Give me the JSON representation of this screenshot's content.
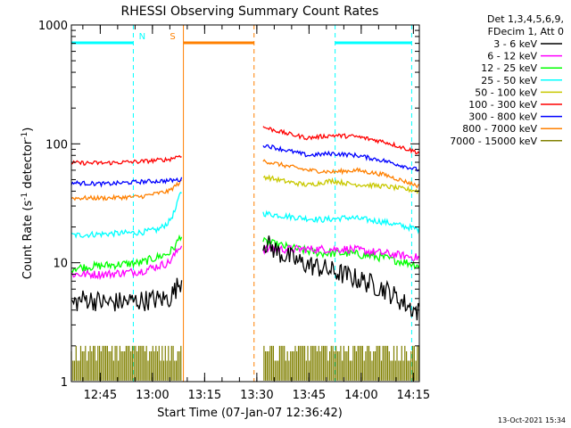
{
  "chart_data": {
    "type": "line",
    "title": "RHESSI Observing Summary Count Rates",
    "xlabel": "Start Time (07-Jan-07 12:36:42)",
    "ylabel_main": "Count Rate (s",
    "ylabel_sup1": "-1",
    "ylabel_mid": " detector",
    "ylabel_sup2": "-1",
    "ylabel_end": ")",
    "y_scale": "log",
    "ylim": [
      1,
      1000
    ],
    "y_ticks": [
      {
        "value": 1,
        "label": "1"
      },
      {
        "value": 10,
        "label": "10"
      },
      {
        "value": 100,
        "label": "100"
      },
      {
        "value": 1000,
        "label": "1000"
      }
    ],
    "xlim_minutes": [
      0,
      100
    ],
    "x_ticks": [
      {
        "minute": 8.3,
        "label": "12:45"
      },
      {
        "minute": 23.3,
        "label": "13:00"
      },
      {
        "minute": 38.3,
        "label": "13:15"
      },
      {
        "minute": 53.3,
        "label": "13:30"
      },
      {
        "minute": 68.3,
        "label": "13:45"
      },
      {
        "minute": 83.3,
        "label": "14:00"
      },
      {
        "minute": 98.3,
        "label": "14:15"
      }
    ],
    "legend_header": [
      "Det 1,3,4,5,6,9,",
      "FDecim 1, Att 0"
    ],
    "legend_position": "right",
    "timestamp": "13-Oct-2021 15:34",
    "flags": [
      {
        "label": "N",
        "color": "#00ffff",
        "bars": [
          [
            0,
            17.8
          ],
          [
            75.8,
            97.8
          ]
        ],
        "lines": [
          17.8,
          75.8,
          97.8
        ]
      },
      {
        "label": "S",
        "color": "#ff8000",
        "bars": [
          [
            32.2,
            52.5
          ]
        ],
        "lines": [
          32.2,
          52.5
        ]
      }
    ],
    "gaps_minutes": [
      [
        31.8,
        55.0
      ]
    ],
    "series": [
      {
        "name": "3 - 6 keV",
        "color": "#000000",
        "noise": 0.09,
        "points": [
          [
            0,
            4.5
          ],
          [
            4,
            5
          ],
          [
            10,
            4.6
          ],
          [
            20,
            4.8
          ],
          [
            28,
            5
          ],
          [
            30,
            6
          ],
          [
            31.4,
            7
          ],
          [
            55.2,
            15
          ],
          [
            60,
            12
          ],
          [
            66,
            10
          ],
          [
            72,
            9
          ],
          [
            78,
            8
          ],
          [
            84,
            7
          ],
          [
            90,
            6
          ],
          [
            96,
            4.5
          ],
          [
            100,
            3.8
          ]
        ]
      },
      {
        "name": "6 - 12 keV",
        "color": "#ff00ff",
        "noise": 0.035,
        "points": [
          [
            0,
            8
          ],
          [
            10,
            8
          ],
          [
            20,
            8.5
          ],
          [
            28,
            10
          ],
          [
            30,
            12
          ],
          [
            31.4,
            14
          ],
          [
            55.2,
            13
          ],
          [
            70,
            13
          ],
          [
            80,
            13
          ],
          [
            90,
            12
          ],
          [
            100,
            11
          ]
        ]
      },
      {
        "name": "12 - 25 keV",
        "color": "#00ff00",
        "noise": 0.035,
        "points": [
          [
            0,
            9
          ],
          [
            10,
            9.5
          ],
          [
            20,
            10
          ],
          [
            28,
            12
          ],
          [
            30,
            14
          ],
          [
            31.4,
            17
          ],
          [
            55.2,
            15
          ],
          [
            65,
            13
          ],
          [
            72,
            12
          ],
          [
            80,
            12
          ],
          [
            90,
            11
          ],
          [
            100,
            9.5
          ]
        ]
      },
      {
        "name": "25 - 50 keV",
        "color": "#00ffff",
        "noise": 0.025,
        "points": [
          [
            0,
            17
          ],
          [
            10,
            17.5
          ],
          [
            20,
            18
          ],
          [
            25,
            19
          ],
          [
            28,
            22
          ],
          [
            30,
            28
          ],
          [
            31.4,
            40
          ],
          [
            55.2,
            26
          ],
          [
            65,
            24
          ],
          [
            72,
            23
          ],
          [
            80,
            24
          ],
          [
            90,
            22
          ],
          [
            100,
            19
          ]
        ]
      },
      {
        "name": "50 - 100 keV",
        "color": "#c8c800",
        "noise": 0.02,
        "points": [
          [
            55.2,
            53
          ],
          [
            62,
            48
          ],
          [
            68,
            45
          ],
          [
            75,
            49
          ],
          [
            80,
            46
          ],
          [
            90,
            44
          ],
          [
            100,
            40
          ]
        ]
      },
      {
        "name": "100 - 300 keV",
        "color": "#ff0000",
        "noise": 0.018,
        "points": [
          [
            0,
            69
          ],
          [
            10,
            69
          ],
          [
            20,
            71
          ],
          [
            28,
            74
          ],
          [
            31.4,
            80
          ],
          [
            55.2,
            138
          ],
          [
            62,
            122
          ],
          [
            68,
            112
          ],
          [
            75,
            118
          ],
          [
            82,
            115
          ],
          [
            90,
            104
          ],
          [
            100,
            84
          ]
        ]
      },
      {
        "name": "300 - 800 keV",
        "color": "#0000ff",
        "noise": 0.018,
        "points": [
          [
            0,
            47
          ],
          [
            10,
            46
          ],
          [
            20,
            48
          ],
          [
            28,
            49
          ],
          [
            31.4,
            50
          ],
          [
            55.2,
            98
          ],
          [
            62,
            88
          ],
          [
            68,
            80
          ],
          [
            75,
            83
          ],
          [
            82,
            80
          ],
          [
            90,
            72
          ],
          [
            100,
            60
          ]
        ]
      },
      {
        "name": "800 - 7000 keV",
        "color": "#ff8000",
        "noise": 0.018,
        "points": [
          [
            0,
            35
          ],
          [
            10,
            35
          ],
          [
            20,
            36
          ],
          [
            28,
            40
          ],
          [
            31.4,
            48
          ],
          [
            55.2,
            72
          ],
          [
            62,
            65
          ],
          [
            68,
            60
          ],
          [
            75,
            58
          ],
          [
            82,
            60
          ],
          [
            90,
            55
          ],
          [
            100,
            44
          ]
        ]
      },
      {
        "name": "7000 - 15000 keV",
        "color": "#808000",
        "noise": 0,
        "points": [
          [
            0,
            1.5
          ],
          [
            100,
            1.5
          ]
        ]
      }
    ]
  }
}
